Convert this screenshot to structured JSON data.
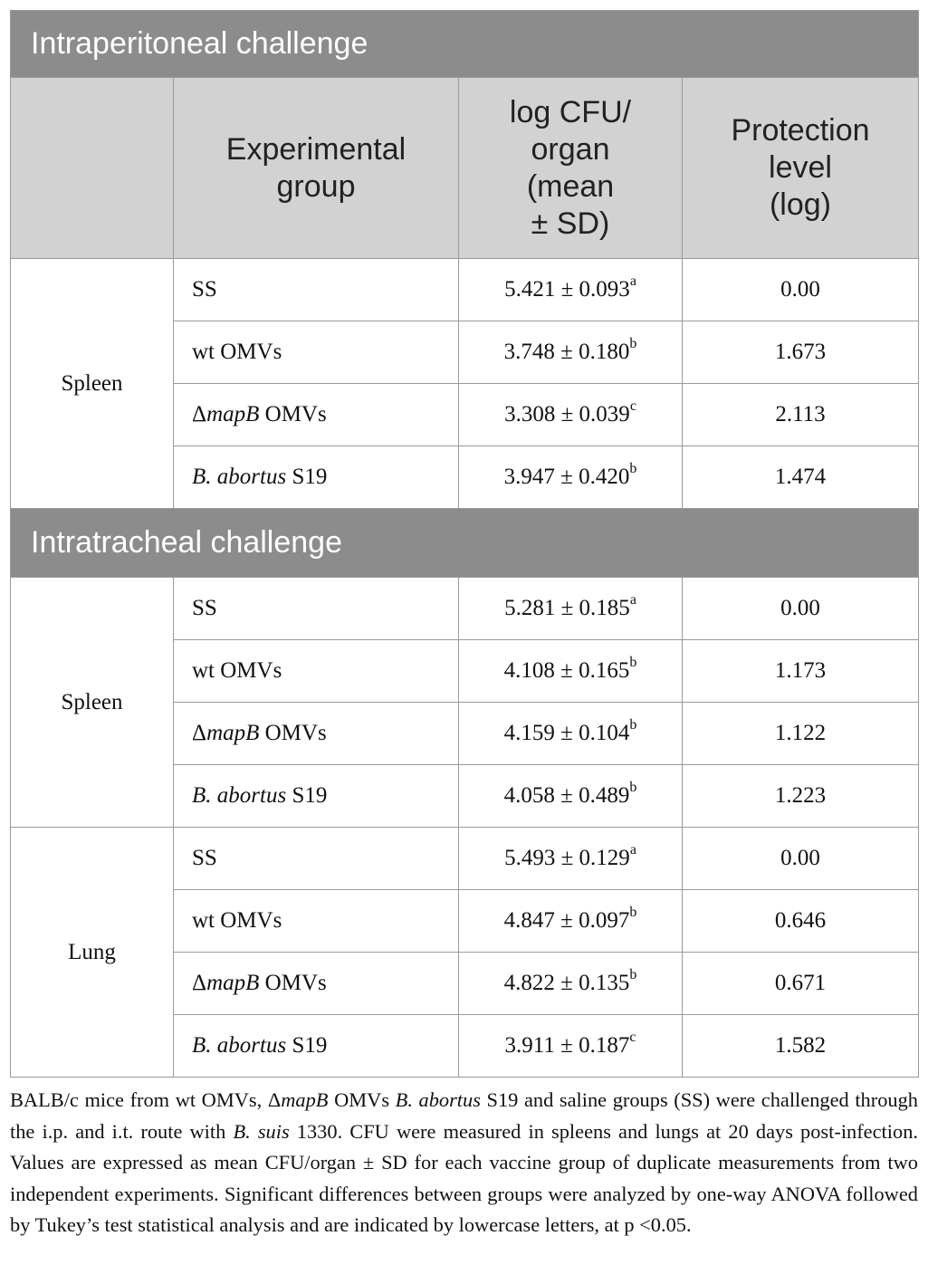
{
  "sections": [
    {
      "title": "Intraperitoneal challenge"
    },
    {
      "title": "Intratracheal challenge"
    }
  ],
  "columns": {
    "group_line1": "Experimental",
    "group_line2": "group",
    "cfu_line1": "log CFU/",
    "cfu_line2": "organ",
    "cfu_line3": "(mean",
    "cfu_line4": "± SD)",
    "prot_line1": "Protection",
    "prot_line2": "level",
    "prot_line3": "(log)"
  },
  "ip": {
    "organ": "Spleen",
    "rows": [
      {
        "group": "SS",
        "value": "5.421 ± 0.093",
        "sig": "a",
        "protection": "0.00"
      },
      {
        "group": "wt OMVs",
        "value": "3.748 ± 0.180",
        "sig": "b",
        "protection": "1.673"
      },
      {
        "group_prefix": "Δ",
        "group_italic": "mapB",
        "group_suffix": " OMVs",
        "value": "3.308 ± 0.039",
        "sig": "c",
        "protection": "2.113"
      },
      {
        "group_italic": "B. abortus",
        "group_suffix": " S19",
        "value": "3.947 ± 0.420",
        "sig": "b",
        "protection": "1.474"
      }
    ]
  },
  "it_spleen": {
    "organ": "Spleen",
    "rows": [
      {
        "group": "SS",
        "value": "5.281 ± 0.185",
        "sig": "a",
        "protection": "0.00"
      },
      {
        "group": "wt OMVs",
        "value": "4.108 ± 0.165",
        "sig": "b",
        "protection": "1.173"
      },
      {
        "group_prefix": "Δ",
        "group_italic": "mapB",
        "group_suffix": " OMVs",
        "value": "4.159 ± 0.104",
        "sig": "b",
        "protection": "1.122"
      },
      {
        "group_italic": "B. abortus",
        "group_suffix": " S19",
        "value": "4.058 ± 0.489",
        "sig": "b",
        "protection": "1.223"
      }
    ]
  },
  "it_lung": {
    "organ": "Lung",
    "rows": [
      {
        "group": "SS",
        "value": "5.493 ± 0.129",
        "sig": "a",
        "protection": "0.00"
      },
      {
        "group": "wt OMVs",
        "value": "4.847 ± 0.097",
        "sig": "b",
        "protection": "0.646"
      },
      {
        "group_prefix": "Δ",
        "group_italic": "mapB",
        "group_suffix": " OMVs",
        "value": "4.822 ± 0.135",
        "sig": "b",
        "protection": "0.671"
      },
      {
        "group_italic": "B. abortus",
        "group_suffix": " S19",
        "value": "3.911 ± 0.187",
        "sig": "c",
        "protection": "1.582"
      }
    ]
  },
  "caption": {
    "p1": "BALB/c mice from wt OMVs, Δ",
    "i1": "mapB",
    "p2": " OMVs ",
    "i2": "B. abortus",
    "p3": " S19 and saline groups (SS) were challenged through the i.p. and i.t. route with ",
    "i3": "B. suis",
    "p4": " 1330. CFU were measured in spleens and lungs at 20 days post-infection. Values are expressed as mean CFU/organ ± SD for each vaccine group of duplicate measurements from two independent experiments. Significant differences between groups were analyzed by one-way ANOVA followed by Tukey’s test statistical analysis and are indicated by lowercase letters, at p <0.05."
  }
}
